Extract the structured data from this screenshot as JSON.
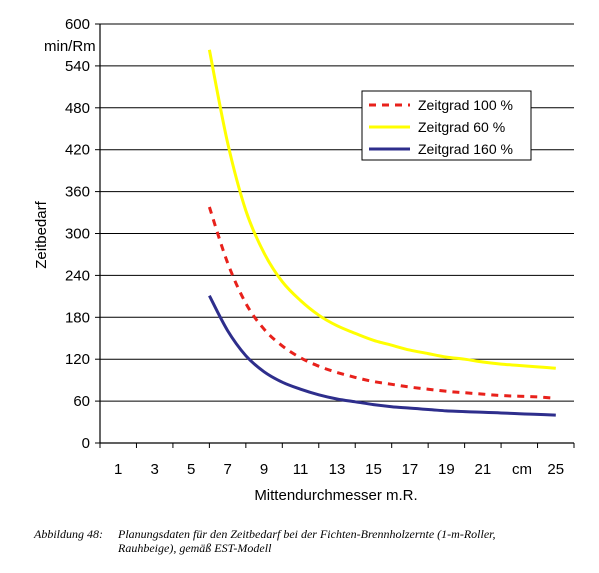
{
  "chart_data": {
    "type": "line",
    "title": "",
    "ylabel": "Zeitbedarf",
    "yunit": "min/Rm",
    "xlabel": "Mittendurchmesser m.R.",
    "xunit": "cm",
    "xlim": [
      0,
      26
    ],
    "ylim": [
      0,
      600
    ],
    "x_ticks": [
      1,
      3,
      5,
      7,
      9,
      11,
      13,
      15,
      17,
      19,
      21,
      25
    ],
    "y_ticks": [
      0,
      60,
      120,
      180,
      240,
      300,
      360,
      420,
      480,
      540,
      600
    ],
    "grid": "horizontal",
    "legend_position": "top-right",
    "x": [
      6,
      7,
      8,
      9,
      10,
      11,
      12,
      13,
      14,
      15,
      16,
      17,
      18,
      19,
      20,
      21,
      22,
      23,
      24,
      25
    ],
    "series": [
      {
        "name": "Zeitgrad 100 %",
        "color": "#e8211b",
        "style": "dashed",
        "values": [
          338,
          258,
          200,
          163,
          139,
          122,
          110,
          101,
          94,
          88,
          84,
          80,
          77,
          74,
          72,
          70,
          68,
          67,
          66,
          64
        ]
      },
      {
        "name": "Zeitgrad 60 %",
        "color": "#ffff00",
        "style": "solid",
        "values": [
          563,
          430,
          333,
          272,
          231,
          204,
          183,
          168,
          157,
          147,
          140,
          133,
          128,
          123,
          120,
          116,
          113,
          111,
          109,
          107
        ]
      },
      {
        "name": "Zeitgrad 160 %",
        "color": "#2e2e8c",
        "style": "solid",
        "values": [
          211,
          161,
          125,
          102,
          87,
          77,
          69,
          63,
          59,
          55,
          52,
          50,
          48,
          46,
          45,
          44,
          43,
          42,
          41,
          40
        ]
      }
    ]
  },
  "caption": {
    "label": "Abbildung 48:",
    "line1": "Planungsdaten für den Zeitbedarf bei der Fichten-Brennholzernte (1-m-Roller,",
    "line2": "Rauhbeige), gemäß EST-Modell"
  }
}
